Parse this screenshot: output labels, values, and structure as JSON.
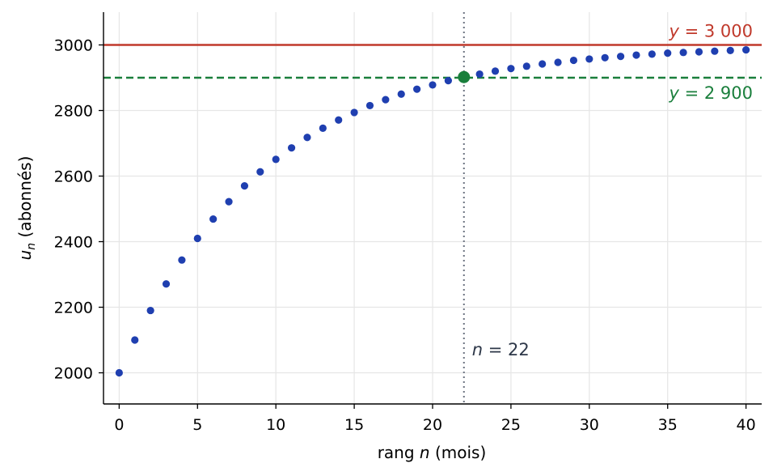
{
  "chart_data": {
    "type": "scatter",
    "title": "",
    "xlabel": {
      "pre": "rang ",
      "var": "n",
      "post": " (mois)"
    },
    "ylabel": {
      "var": "u",
      "sub": "n",
      "post": " (abonnés)"
    },
    "xlim": [
      -1,
      41
    ],
    "ylim": [
      1905,
      3100
    ],
    "xticks": [
      0,
      5,
      10,
      15,
      20,
      25,
      30,
      35,
      40
    ],
    "yticks": [
      2000,
      2200,
      2400,
      2600,
      2800,
      3000
    ],
    "grid": true,
    "series": [
      {
        "color": "#1f3fb0",
        "x": [
          0,
          1,
          2,
          3,
          4,
          5,
          6,
          7,
          8,
          9,
          10,
          11,
          12,
          13,
          14,
          15,
          16,
          17,
          18,
          19,
          20,
          21,
          22,
          23,
          24,
          25,
          26,
          27,
          28,
          29,
          30,
          31,
          32,
          33,
          34,
          35,
          36,
          37,
          38,
          39,
          40
        ],
        "y": [
          2000,
          2100,
          2190,
          2271,
          2344,
          2410,
          2469,
          2522,
          2570,
          2613,
          2651,
          2686,
          2718,
          2746,
          2771,
          2794,
          2815,
          2833,
          2850,
          2865,
          2878,
          2891,
          2902,
          2911,
          2920,
          2928,
          2935,
          2942,
          2947,
          2953,
          2957,
          2961,
          2965,
          2969,
          2972,
          2975,
          2977,
          2979,
          2981,
          2983,
          2985
        ]
      }
    ],
    "highlight": {
      "x": 22,
      "y": 2902,
      "color": "#1a7f3c"
    },
    "hlines": [
      {
        "y": 3000,
        "color": "#c0392b",
        "style": "solid",
        "label_var": "y",
        "label_rest": " = 3 000"
      },
      {
        "y": 2900,
        "color": "#1a7f3c",
        "style": "dashed",
        "label_var": "y",
        "label_rest": " = 2 900"
      }
    ],
    "vline": {
      "x": 22,
      "color": "#6b7280",
      "label_var": "n",
      "label_rest": " = 22",
      "label_color": "#2d3748"
    }
  }
}
